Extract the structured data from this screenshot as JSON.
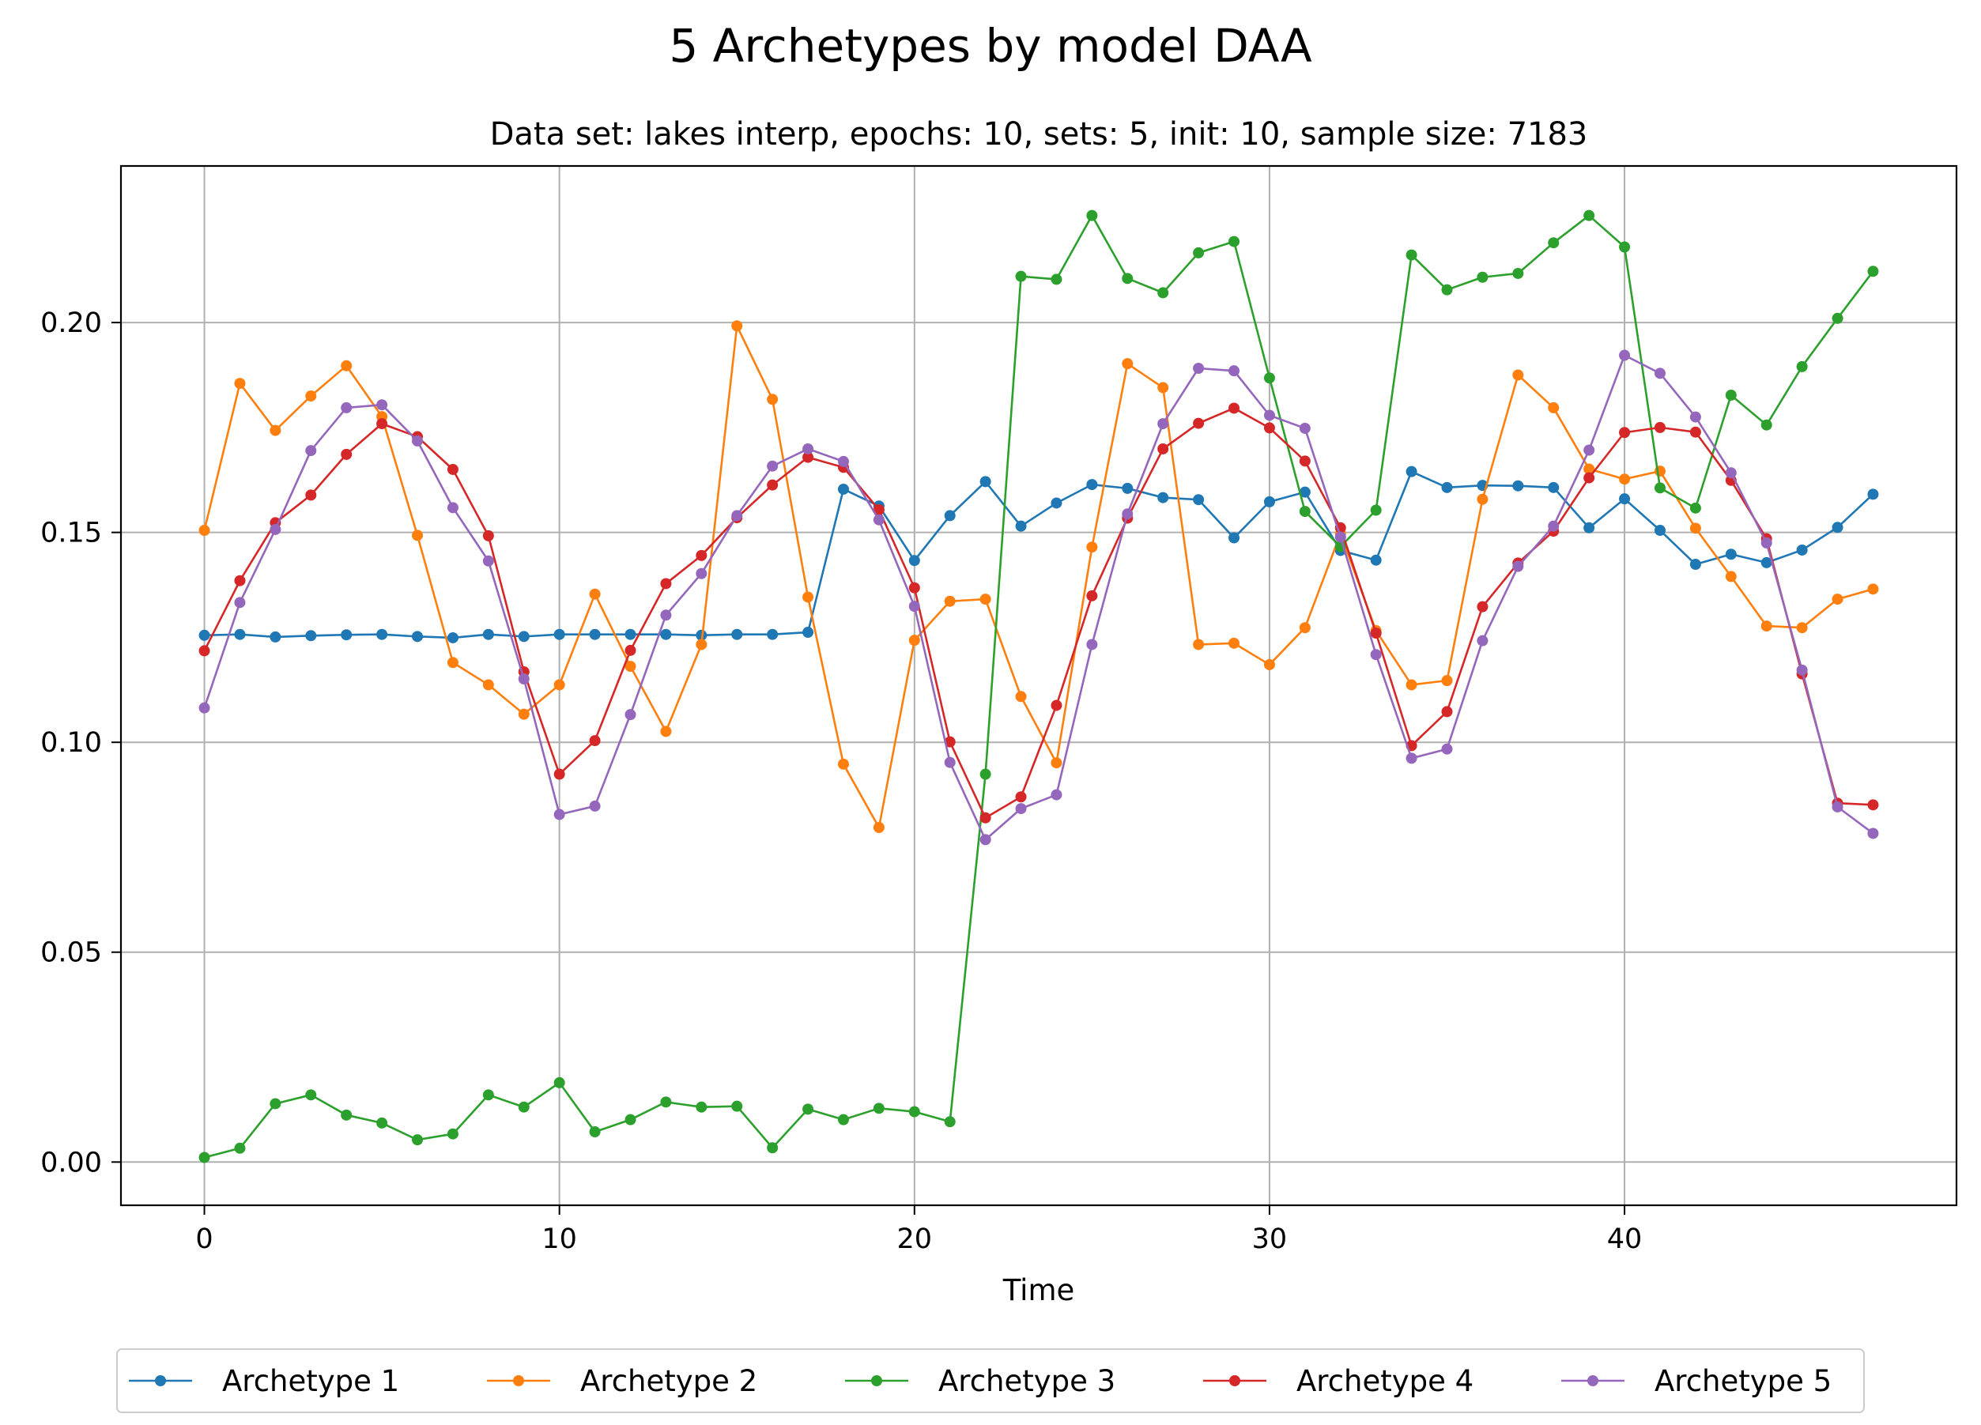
{
  "figure": {
    "title": "5 Archetypes by model DAA",
    "subtitle": "Data set: lakes interp, epochs: 10, sets: 5, init: 10, sample size: 7183"
  },
  "chart_data": {
    "type": "line",
    "title": "5 Archetypes by model DAA",
    "subtitle": "Data set: lakes interp, epochs: 10, sets: 5, init: 10, sample size: 7183",
    "xlabel": "Time",
    "ylabel": "",
    "xlim": [
      -2.35,
      49.35
    ],
    "ylim": [
      -0.0103,
      0.2373
    ],
    "x_ticks": [
      0,
      10,
      20,
      30,
      40
    ],
    "x_tick_labels": [
      "0",
      "10",
      "20",
      "30",
      "40"
    ],
    "y_ticks": [
      0.0,
      0.05,
      0.1,
      0.15,
      0.2
    ],
    "y_tick_labels": [
      "0.00",
      "0.05",
      "0.10",
      "0.15",
      "0.20"
    ],
    "grid": true,
    "legend_position": "bottom-center",
    "marker": "circle",
    "x": [
      0,
      1,
      2,
      3,
      4,
      5,
      6,
      7,
      8,
      9,
      10,
      11,
      12,
      13,
      14,
      15,
      16,
      17,
      18,
      19,
      20,
      21,
      22,
      23,
      24,
      25,
      26,
      27,
      28,
      29,
      30,
      31,
      32,
      33,
      34,
      35,
      36,
      37,
      38,
      39,
      40,
      41,
      42,
      43,
      44,
      45,
      46,
      47
    ],
    "series": [
      {
        "name": "Archetype 1",
        "color": "#1f77b4",
        "values": [
          0.1255,
          0.1257,
          0.1251,
          0.1254,
          0.1256,
          0.1257,
          0.1252,
          0.1249,
          0.1257,
          0.1252,
          0.1257,
          0.1257,
          0.1257,
          0.1257,
          0.1255,
          0.1257,
          0.1257,
          0.1262,
          0.1603,
          0.1563,
          0.1433,
          0.154,
          0.1621,
          0.1515,
          0.157,
          0.1614,
          0.1605,
          0.1583,
          0.1578,
          0.1487,
          0.1573,
          0.1596,
          0.1457,
          0.1434,
          0.1645,
          0.1607,
          0.1612,
          0.1611,
          0.1607,
          0.1511,
          0.158,
          0.1505,
          0.1424,
          0.1448,
          0.1428,
          0.1458,
          0.1512,
          0.1591
        ]
      },
      {
        "name": "Archetype 2",
        "color": "#ff7f0e",
        "values": [
          0.1505,
          0.1855,
          0.1743,
          0.1825,
          0.1897,
          0.1776,
          0.1493,
          0.119,
          0.1137,
          0.1067,
          0.1137,
          0.1353,
          0.1181,
          0.1026,
          0.1233,
          0.1992,
          0.1817,
          0.1346,
          0.0948,
          0.0797,
          0.1243,
          0.1336,
          0.1341,
          0.1109,
          0.0951,
          0.1465,
          0.1902,
          0.1845,
          0.1233,
          0.1236,
          0.1185,
          0.1273,
          0.1497,
          0.1266,
          0.1137,
          0.1147,
          0.1579,
          0.1875,
          0.1797,
          0.1651,
          0.1627,
          0.1646,
          0.151,
          0.1395,
          0.1277,
          0.1273,
          0.1341,
          0.1365
        ]
      },
      {
        "name": "Archetype 3",
        "color": "#2ca02c",
        "values": [
          0.0011,
          0.0033,
          0.0139,
          0.016,
          0.0112,
          0.0093,
          0.0053,
          0.0067,
          0.016,
          0.0131,
          0.0189,
          0.0072,
          0.0101,
          0.0143,
          0.0131,
          0.0133,
          0.0034,
          0.0126,
          0.0101,
          0.0128,
          0.012,
          0.0096,
          0.0924,
          0.211,
          0.2103,
          0.2255,
          0.2105,
          0.2071,
          0.2166,
          0.2193,
          0.1868,
          0.155,
          0.1466,
          0.1553,
          0.2161,
          0.2078,
          0.2108,
          0.2117,
          0.219,
          0.2255,
          0.218,
          0.1606,
          0.1558,
          0.1827,
          0.1756,
          0.1895,
          0.201,
          0.2122
        ]
      },
      {
        "name": "Archetype 4",
        "color": "#d62728",
        "values": [
          0.1218,
          0.1385,
          0.1523,
          0.1589,
          0.1686,
          0.1759,
          0.1728,
          0.165,
          0.1492,
          0.1168,
          0.0924,
          0.1004,
          0.1219,
          0.1378,
          0.1445,
          0.1535,
          0.1613,
          0.1679,
          0.1655,
          0.1554,
          0.1368,
          0.1001,
          0.082,
          0.087,
          0.1088,
          0.1349,
          0.1534,
          0.1699,
          0.176,
          0.1796,
          0.1749,
          0.167,
          0.1511,
          0.126,
          0.0992,
          0.1073,
          0.1323,
          0.1427,
          0.1503,
          0.163,
          0.1738,
          0.175,
          0.1739,
          0.1624,
          0.1485,
          0.1163,
          0.0855,
          0.0851
        ]
      },
      {
        "name": "Archetype 5",
        "color": "#9467bd",
        "values": [
          0.1082,
          0.1333,
          0.1507,
          0.1695,
          0.1797,
          0.1804,
          0.1718,
          0.1559,
          0.1432,
          0.1151,
          0.0828,
          0.0848,
          0.1066,
          0.1303,
          0.1402,
          0.154,
          0.1658,
          0.1699,
          0.1669,
          0.153,
          0.1324,
          0.0952,
          0.0768,
          0.0842,
          0.0875,
          0.1233,
          0.1544,
          0.1759,
          0.1891,
          0.1885,
          0.1779,
          0.1748,
          0.1489,
          0.1209,
          0.0962,
          0.0984,
          0.1242,
          0.1419,
          0.1515,
          0.1696,
          0.1922,
          0.1879,
          0.1775,
          0.1642,
          0.1475,
          0.1172,
          0.0846,
          0.0783
        ]
      }
    ]
  }
}
